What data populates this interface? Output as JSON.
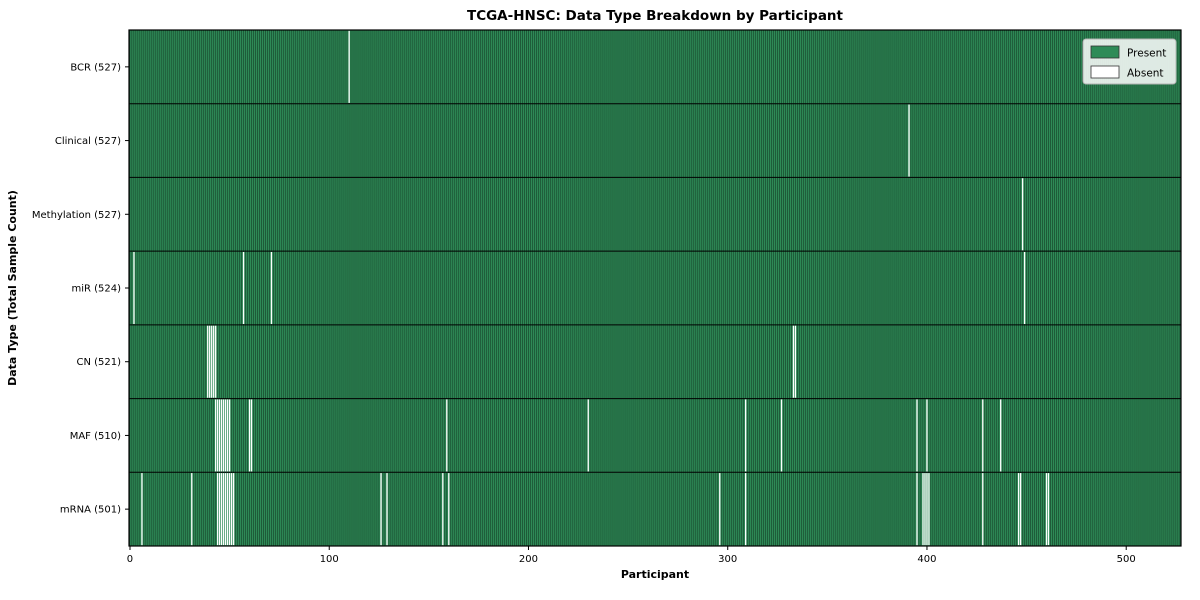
{
  "chart_data": {
    "type": "heatmap",
    "title": "TCGA-HNSC: Data Type Breakdown by Participant",
    "xlabel": "Participant",
    "ylabel": "Data Type (Total Sample Count)",
    "x_ticks": [
      0,
      100,
      200,
      300,
      400,
      500
    ],
    "n_participants": 528,
    "grid": false,
    "colors": {
      "present": "#2e8b57",
      "absent": "#ffffff",
      "bar_edge": "#000000",
      "axis": "#000000",
      "legend_border": "#b3b3b3"
    },
    "legend": {
      "position": "upper right",
      "entries": [
        {
          "label": "Present",
          "color": "#2e8b57"
        },
        {
          "label": "Absent",
          "color": "#ffffff"
        }
      ]
    },
    "rows": [
      {
        "label": "BCR (527)",
        "present_count": 527,
        "absent": [
          110
        ]
      },
      {
        "label": "Clinical (527)",
        "present_count": 527,
        "absent": [
          391
        ]
      },
      {
        "label": "Methylation (527)",
        "present_count": 527,
        "absent": [
          448
        ]
      },
      {
        "label": "miR (524)",
        "present_count": 524,
        "absent": [
          2,
          57,
          71,
          449
        ]
      },
      {
        "label": "CN (521)",
        "present_count": 521,
        "absent": [
          39,
          40,
          41,
          42,
          43,
          333,
          334
        ]
      },
      {
        "label": "MAF (510)",
        "present_count": 510,
        "absent": [
          43,
          44,
          45,
          46,
          47,
          48,
          49,
          50,
          60,
          61,
          159,
          230,
          309,
          327,
          395,
          400,
          428,
          437
        ]
      },
      {
        "label": "mRNA (501)",
        "present_count": 501,
        "absent": [
          6,
          31,
          44,
          45,
          46,
          47,
          48,
          49,
          50,
          51,
          52,
          126,
          129,
          157,
          160,
          296,
          309,
          395,
          398,
          399,
          400,
          401,
          428,
          446,
          447,
          460,
          461
        ]
      }
    ]
  }
}
